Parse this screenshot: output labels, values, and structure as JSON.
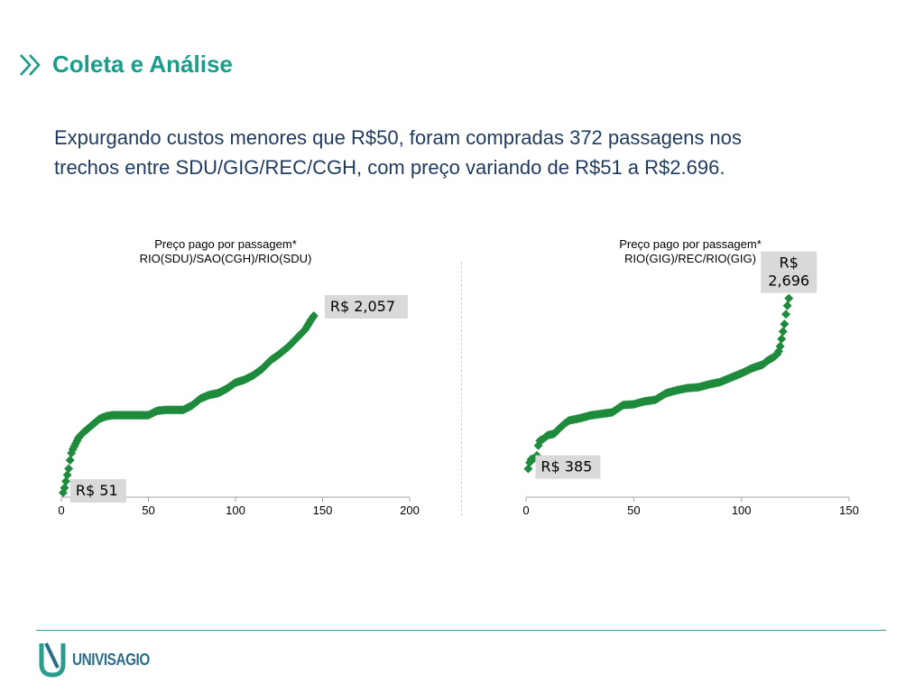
{
  "header": {
    "title": "Coleta e Análise"
  },
  "intro": {
    "line1": "Expurgando custos menores que R$50, foram compradas 372 passagens nos",
    "line2": "trechos entre SDU/GIG/REC/CGH, com preço variando de R$51 a R$2.696."
  },
  "logo": {
    "text": "UNIVISAGIO"
  },
  "colors": {
    "accent": "#1a9d8a",
    "marker": "#1e8a3c",
    "text": "#1f3a5f",
    "label_bg": "#d9d9d9"
  },
  "chart_data": [
    {
      "type": "scatter",
      "title": [
        "Preço pago por passagem*",
        "RIO(SDU)/SAO(CGH)/RIO(SDU)"
      ],
      "xlim": [
        0,
        200
      ],
      "ylim": [
        0,
        2200
      ],
      "xticks": [
        "0",
        "50",
        "100",
        "150",
        "200"
      ],
      "grid": false,
      "marker": "diamond",
      "keypoints": [
        [
          1,
          51
        ],
        [
          2,
          120
        ],
        [
          3,
          220
        ],
        [
          4,
          300
        ],
        [
          5,
          420
        ],
        [
          6,
          520
        ],
        [
          8,
          600
        ],
        [
          10,
          680
        ],
        [
          13,
          740
        ],
        [
          16,
          790
        ],
        [
          19,
          840
        ],
        [
          22,
          890
        ],
        [
          26,
          920
        ],
        [
          30,
          930
        ],
        [
          40,
          930
        ],
        [
          50,
          930
        ],
        [
          55,
          980
        ],
        [
          60,
          990
        ],
        [
          70,
          990
        ],
        [
          75,
          1040
        ],
        [
          80,
          1120
        ],
        [
          85,
          1160
        ],
        [
          90,
          1180
        ],
        [
          95,
          1230
        ],
        [
          100,
          1300
        ],
        [
          105,
          1330
        ],
        [
          110,
          1380
        ],
        [
          115,
          1450
        ],
        [
          120,
          1550
        ],
        [
          125,
          1620
        ],
        [
          130,
          1700
        ],
        [
          135,
          1800
        ],
        [
          140,
          1900
        ],
        [
          143,
          2000
        ],
        [
          145,
          2057
        ]
      ],
      "annotations": [
        {
          "label": "R$ 51",
          "x": 1,
          "y": 51,
          "position": "right"
        },
        {
          "label": "R$ 2,057",
          "x": 145,
          "y": 2057,
          "position": "right"
        }
      ]
    },
    {
      "type": "scatter",
      "title": [
        "Preço pago por passagem*",
        "RIO(GIG)/REC/RIO(GIG)"
      ],
      "xlim": [
        0,
        150
      ],
      "ylim": [
        0,
        2900
      ],
      "xticks": [
        "0",
        "50",
        "100",
        "150"
      ],
      "grid": false,
      "marker": "diamond",
      "keypoints": [
        [
          1,
          385
        ],
        [
          2,
          510
        ],
        [
          4,
          530
        ],
        [
          5,
          560
        ],
        [
          6,
          760
        ],
        [
          8,
          790
        ],
        [
          10,
          840
        ],
        [
          13,
          860
        ],
        [
          15,
          920
        ],
        [
          18,
          1000
        ],
        [
          20,
          1040
        ],
        [
          25,
          1070
        ],
        [
          30,
          1110
        ],
        [
          35,
          1130
        ],
        [
          40,
          1150
        ],
        [
          45,
          1250
        ],
        [
          50,
          1260
        ],
        [
          55,
          1300
        ],
        [
          60,
          1320
        ],
        [
          65,
          1410
        ],
        [
          70,
          1450
        ],
        [
          75,
          1480
        ],
        [
          80,
          1490
        ],
        [
          85,
          1530
        ],
        [
          90,
          1560
        ],
        [
          95,
          1620
        ],
        [
          100,
          1680
        ],
        [
          105,
          1750
        ],
        [
          110,
          1800
        ],
        [
          112,
          1850
        ],
        [
          115,
          1900
        ],
        [
          117,
          1950
        ],
        [
          118,
          2050
        ],
        [
          119,
          2200
        ],
        [
          120,
          2350
        ],
        [
          121,
          2550
        ],
        [
          122,
          2696
        ]
      ],
      "annotations": [
        {
          "label": "R$ 385",
          "x": 1,
          "y": 385,
          "position": "right"
        },
        {
          "label": [
            "R$",
            "2,696"
          ],
          "x": 122,
          "y": 2696,
          "position": "above"
        }
      ]
    }
  ]
}
